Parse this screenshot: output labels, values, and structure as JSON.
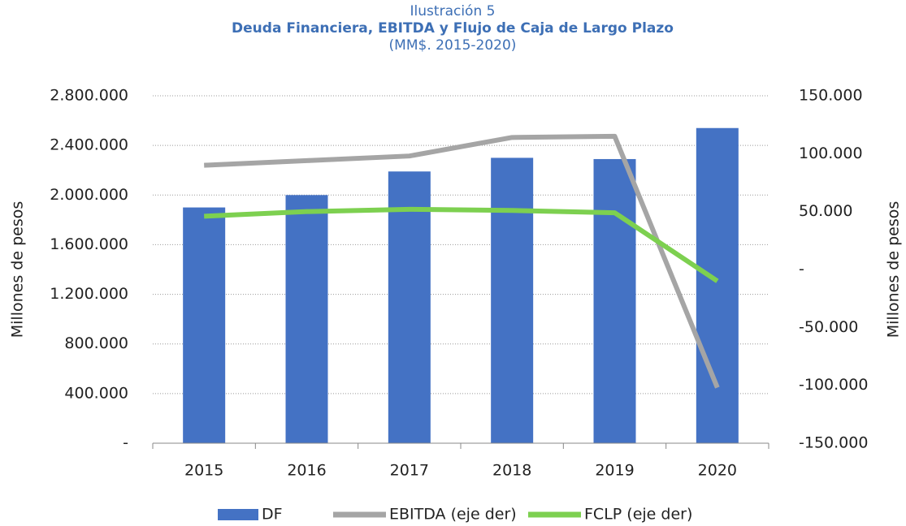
{
  "chart_data": {
    "type": "bar-line",
    "title": "Ilustración 5",
    "subtitle": "Deuda Financiera, EBITDA y Flujo de Caja de Largo Plazo",
    "subtitle2": "(MM$. 2015-2020)",
    "ylabel": "Millones de pesos",
    "y2label": "Millones de pesos",
    "categories": [
      "2015",
      "2016",
      "2017",
      "2018",
      "2019",
      "2020"
    ],
    "series": [
      {
        "name": "DF",
        "type": "bar",
        "color": "#4472c4",
        "values": [
          1900000,
          2000000,
          2190000,
          2300000,
          2290000,
          2540000
        ]
      },
      {
        "name": "EBITDA (eje der)",
        "type": "line",
        "axis": "y2",
        "color": "#a5a5a5",
        "values": [
          90000,
          94000,
          98000,
          114000,
          115000,
          -102000
        ]
      },
      {
        "name": "FCLP (eje der)",
        "type": "line",
        "axis": "y2",
        "color": "#7dd050",
        "values": [
          46000,
          50000,
          52000,
          51000,
          49000,
          -10000
        ]
      }
    ],
    "ylim": [
      0,
      2800000
    ],
    "yticks": [
      {
        "value": 0,
        "label": "-"
      },
      {
        "value": 400000,
        "label": "400.000"
      },
      {
        "value": 800000,
        "label": "800.000"
      },
      {
        "value": 1200000,
        "label": "1.200.000"
      },
      {
        "value": 1600000,
        "label": "1.600.000"
      },
      {
        "value": 2000000,
        "label": "2.000.000"
      },
      {
        "value": 2400000,
        "label": "2.400.000"
      },
      {
        "value": 2800000,
        "label": "2.800.000"
      }
    ],
    "y2lim": [
      -150000,
      150000
    ],
    "y2ticks": [
      {
        "value": -150000,
        "label": "-150.000"
      },
      {
        "value": -100000,
        "label": "-100.000"
      },
      {
        "value": -50000,
        "label": "-50.000"
      },
      {
        "value": 0,
        "label": "-"
      },
      {
        "value": 50000,
        "label": "50.000"
      },
      {
        "value": 100000,
        "label": "100.000"
      },
      {
        "value": 150000,
        "label": "150.000"
      }
    ],
    "grid": true,
    "legend": "bottom"
  }
}
